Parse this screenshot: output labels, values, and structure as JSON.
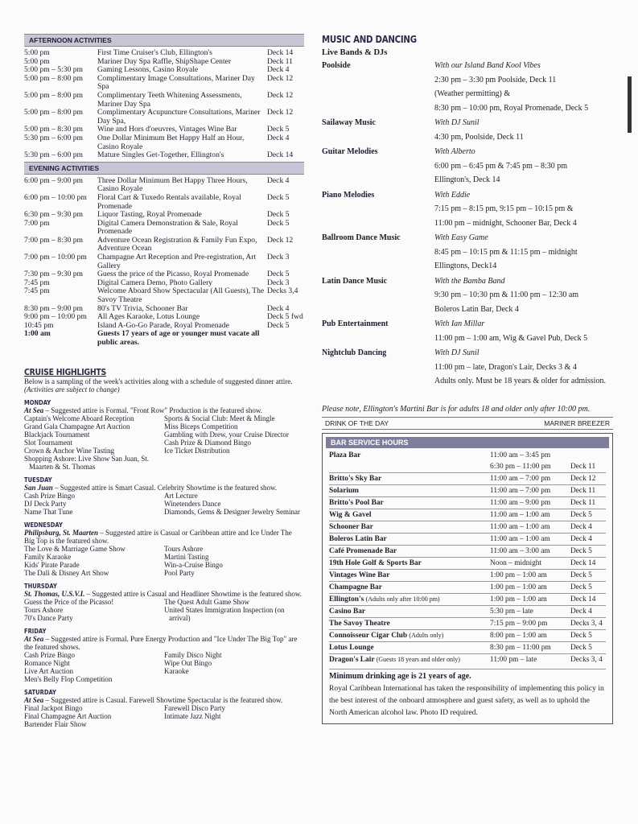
{
  "afternoon": {
    "title": "AFTERNOON ACTIVITIES",
    "rows": [
      [
        "5:00 pm",
        "First Time Cruiser's Club, Ellington's",
        "Deck 14"
      ],
      [
        "5:00 pm",
        "Mariner Day Spa Raffle, ShipShape Center",
        "Deck 11"
      ],
      [
        "5:00 pm – 5:30 pm",
        "Gaming Lessons, Casino Royale",
        "Deck 4"
      ],
      [
        "5:00 pm – 8:00 pm",
        "Complimentary Image Consultations, Mariner Day Spa",
        "Deck 12"
      ],
      [
        "5:00 pm – 8:00 pm",
        "Complimentary Teeth Whitening Assessments, Mariner Day Spa",
        "Deck 12"
      ],
      [
        "5:00 pm – 8:00 pm",
        "Complimentary Acupuncture Consultations, Mariner Day Spa,",
        "Deck 12"
      ],
      [
        "5:00 pm – 8:30 pm",
        "Wine and Hors d'oeuvres, Vintages Wine Bar",
        "Deck 5"
      ],
      [
        "5:30 pm – 6:00 pm",
        "One Dollar Minimum Bet Happy Half an Hour, Casino Royale",
        "Deck 4"
      ],
      [
        "5:30 pm – 6:00 pm",
        "Mature Singles Get-Together, Ellington's",
        "Deck 14"
      ]
    ]
  },
  "evening": {
    "title": "EVENING ACTIVITIES",
    "rows": [
      [
        "6:00 pm – 9:00 pm",
        "Three Dollar Minimum Bet Happy Three Hours, Casino Royale",
        "Deck 4"
      ],
      [
        "6:00 pm – 10:00 pm",
        "Floral Cart & Tuxedo Rentals available, Royal Promenade",
        "Deck 5"
      ],
      [
        "6:30 pm – 9:30 pm",
        "Liquor Tasting, Royal Promenade",
        "Deck 5"
      ],
      [
        "7:00 pm",
        "Digital Camera Demonstration & Sale, Royal Promenade",
        "Deck 5"
      ],
      [
        "7:00 pm – 8:30 pm",
        "Adventure Ocean Registration & Family Fun Expo, Adventure Ocean",
        "Deck 12"
      ],
      [
        "7:00 pm – 10:00 pm",
        "Champagne Art Reception and Pre-registration, Art Gallery",
        "Deck 3"
      ],
      [
        "7:30 pm – 9:30 pm",
        "Guess the price of the Picasso, Royal Promenade",
        "Deck 5"
      ],
      [
        "7:45 pm",
        "Digital Camera Demo, Photo Gallery",
        "Deck 3"
      ],
      [
        "7:45 pm",
        "Welcome Aboard Show Spectacular (All Guests), The Savoy Theatre",
        "Decks 3,4"
      ],
      [
        "8:30 pm – 9:00 pm",
        "80's TV Trivia, Schooner Bar",
        "Deck 4"
      ],
      [
        "9:00 pm – 10:00 pm",
        "All Ages Karaoke, Lotus Lounge",
        "Deck 5 fwd"
      ],
      [
        "10:45 pm",
        "Island A-Go-Go Parade, Royal Promenade",
        "Deck 5"
      ]
    ],
    "final": [
      "1:00 am",
      "Guests 17 years of age or younger must vacate all public areas."
    ]
  },
  "highlights": {
    "title": "CRUISE HIGHLIGHTS",
    "intro": "Below is a sampling of the week's activities along with a schedule of suggested dinner attire.",
    "note": "(Activities are subject to change)",
    "days": [
      {
        "day": "MONDAY",
        "place": "At Sea",
        "text": " – Suggested attire is Formal. \"Front Row\" Production is the featured show.",
        "left": [
          "Captain's Welcome Aboard Reception",
          "Grand Gala Champagne Art Auction",
          "Blackjack Tournament",
          "Slot Tournament",
          "Crown & Anchor Wine Tasting",
          "Shopping Ashore: Live Show San Juan, St. Maarten & St. Thomas"
        ],
        "right": [
          "Sports & Social Club: Meet & Mingle",
          "Miss Biceps Competition",
          "Gambling with Drew, your Cruise Director",
          "Cash Prize & Diamond Bingo",
          "Ice Ticket Distribution"
        ]
      },
      {
        "day": "TUESDAY",
        "place": "San Juan",
        "text": " – Suggested attire is Smart Casual. Celebrity Showtime is the featured show.",
        "left": [
          "Cash Prize Bingo",
          "DJ Deck Party",
          "Name That Tune"
        ],
        "right": [
          "Art Lecture",
          "Winetenders Dance",
          "Diamonds, Gems & Designer Jewelry Seminar"
        ]
      },
      {
        "day": "WEDNESDAY",
        "place": "Philipsburg, St. Maarten",
        "text": " – Suggested attire is Casual or Caribbean attire and Ice Under The Big Top is the featured show.",
        "left": [
          "The Love & Marriage Game Show",
          "Family Karaoke",
          "Kids' Pirate Parade",
          "The Dali & Disney Art Show"
        ],
        "right": [
          "Tours Ashore",
          "Martini Tasting",
          "Win-a-Cruise Bingo",
          "Pool Party"
        ]
      },
      {
        "day": "THURSDAY",
        "place": "St. Thomas, U.S.V.I.",
        "text": " – Suggested attire is Casual and Headliner Showtime is the featured show.",
        "left": [
          "Guess the Price of the Picasso!",
          "Tours Ashore",
          "70's Dance Party"
        ],
        "right": [
          "The Quest Adult Game Show",
          "United States Immigration Inspection (on arrival)"
        ]
      },
      {
        "day": "FRIDAY",
        "place": "At Sea",
        "text": " – Suggested attire is Formal. Pure Energy Production and \"Ice Under The Big Top\" are the featured shows.",
        "left": [
          "Cash Prize Bingo",
          "Romance Night",
          "Live Art Auction",
          "Men's Belly Flop Competition"
        ],
        "right": [
          "Family Disco Night",
          "Wipe Out Bingo",
          "Karaoke"
        ]
      },
      {
        "day": "SATURDAY",
        "place": "At Sea",
        "text": " – Suggested attire is Casual. Farewell Showtime Spectacular is the featured show.",
        "left": [
          "Final Jackpot Bingo",
          "Final Champagne Art Auction",
          "Bartender Flair Show"
        ],
        "right": [
          "Farewell Disco Party",
          "Intimate Jazz Night"
        ]
      }
    ]
  },
  "music": {
    "title": "MUSIC AND DANCING",
    "subtitle": "Live Bands & DJs",
    "rows": [
      {
        "name": "Poolside",
        "lines": [
          "With our Island Band Kool Vibes",
          "2:30 pm – 3:30 pm Poolside, Deck 11",
          "(Weather permitting) &",
          "8:30 pm – 10:00 pm, Royal Promenade, Deck 5"
        ]
      },
      {
        "name": "Sailaway Music",
        "lines": [
          "With DJ Sunil",
          "4:30 pm, Poolside, Deck 11"
        ]
      },
      {
        "name": "Guitar Melodies",
        "lines": [
          "With Alberto",
          "6:00 pm – 6:45 pm & 7:45 pm – 8:30 pm",
          "Ellington's, Deck 14"
        ]
      },
      {
        "name": "Piano Melodies",
        "lines": [
          "With Eddie",
          "7:15 pm – 8:15 pm, 9:15 pm – 10:15 pm &",
          "11:00 pm – midnight, Schooner Bar, Deck 4"
        ]
      },
      {
        "name": "Ballroom Dance Music",
        "lines": [
          "With Easy Game",
          "8:45 pm – 10:15 pm & 11:15 pm – midnight",
          "Ellingtons, Deck14"
        ]
      },
      {
        "name": "Latin Dance Music",
        "lines": [
          "With the Bamba Band",
          "9:30 pm – 10:30 pm & 11:00 pm – 12:30 am",
          "Boleros Latin Bar, Deck 4"
        ]
      },
      {
        "name": "Pub Entertainment",
        "lines": [
          "With Ian Millar",
          "11:00 pm – 1:00 am, Wig & Gavel Pub, Deck 5"
        ]
      },
      {
        "name": "Nightclub Dancing",
        "lines": [
          "With DJ Sunil",
          "11:00 pm – late, Dragon's Lair, Decks 3 & 4",
          "Adults only. Must be 18 years & older for admission."
        ]
      }
    ]
  },
  "note": "Please note, Ellington's Martini Bar is for adults 18 and older only after 10:00 pm.",
  "drink": {
    "label": "DRINK OF THE DAY",
    "value": "MARINER BREEZER"
  },
  "bars": {
    "title": "BAR SERVICE HOURS",
    "rows": [
      {
        "name": "Plaza Bar",
        "hours": [
          "11:00 am – 3:45 pm",
          "6:30 pm – 11:00 pm"
        ],
        "deck": "Deck 11"
      },
      {
        "name": "Britto's Sky Bar",
        "hours": [
          "11:00 am – 7:00 pm"
        ],
        "deck": "Deck 12"
      },
      {
        "name": "Solarium",
        "hours": [
          "11:00 am – 7:00 pm"
        ],
        "deck": "Deck 11"
      },
      {
        "name": "Britto's Pool Bar",
        "hours": [
          "11:00 am – 9:00 pm"
        ],
        "deck": "Deck 11"
      },
      {
        "name": "Wig & Gavel",
        "hours": [
          "11:00 am – 1:00 am"
        ],
        "deck": "Deck 5"
      },
      {
        "name": "Schooner Bar",
        "hours": [
          "11:00 am – 1:00 am"
        ],
        "deck": "Deck 4"
      },
      {
        "name": "Boleros Latin Bar",
        "hours": [
          "11:00 am – 1:00 am"
        ],
        "deck": "Deck 4"
      },
      {
        "name": "Café Promenade Bar",
        "hours": [
          "11:00 am – 3:00 am"
        ],
        "deck": "Deck 5"
      },
      {
        "name": "19th Hole Golf & Sports Bar",
        "hours": [
          "Noon – midnight"
        ],
        "deck": "Deck 14"
      },
      {
        "name": "Vintages Wine Bar",
        "hours": [
          "1:00 pm – 1:00 am"
        ],
        "deck": "Deck 5"
      },
      {
        "name": "Champagne Bar",
        "hours": [
          "1:00 pm – 1:00 am"
        ],
        "deck": "Deck 5"
      },
      {
        "name": "Ellington's",
        "note": "(Adults only after 10:00 pm)",
        "hours": [
          "1:00 pm – 1:00 am"
        ],
        "deck": "Deck 14"
      },
      {
        "name": "Casino Bar",
        "hours": [
          "5:30 pm – late"
        ],
        "deck": "Deck 4"
      },
      {
        "name": "The Savoy Theatre",
        "hours": [
          "7:15 pm – 9:00 pm"
        ],
        "deck": "Decks 3, 4"
      },
      {
        "name": "Connoisseur Cigar Club",
        "note": "(Adults only)",
        "hours": [
          "8:00 pm – 1:00 am"
        ],
        "deck": "Deck 5"
      },
      {
        "name": "Lotus Lounge",
        "hours": [
          "8:30 pm – 11:00 pm"
        ],
        "deck": "Deck 5"
      },
      {
        "name": "Dragon's Lair",
        "note": "(Guests 18 years and older only)",
        "hours": [
          "11:00 pm – late"
        ],
        "deck": "Decks 3, 4"
      }
    ],
    "age": "Minimum drinking age is 21 years of age.",
    "policy": "Royal Caribbean International has taken the responsibility of implementing this policy in the best interest of the onboard atmosphere and guest safety, as well as to uphold the North American alcohol law. Photo ID required."
  }
}
